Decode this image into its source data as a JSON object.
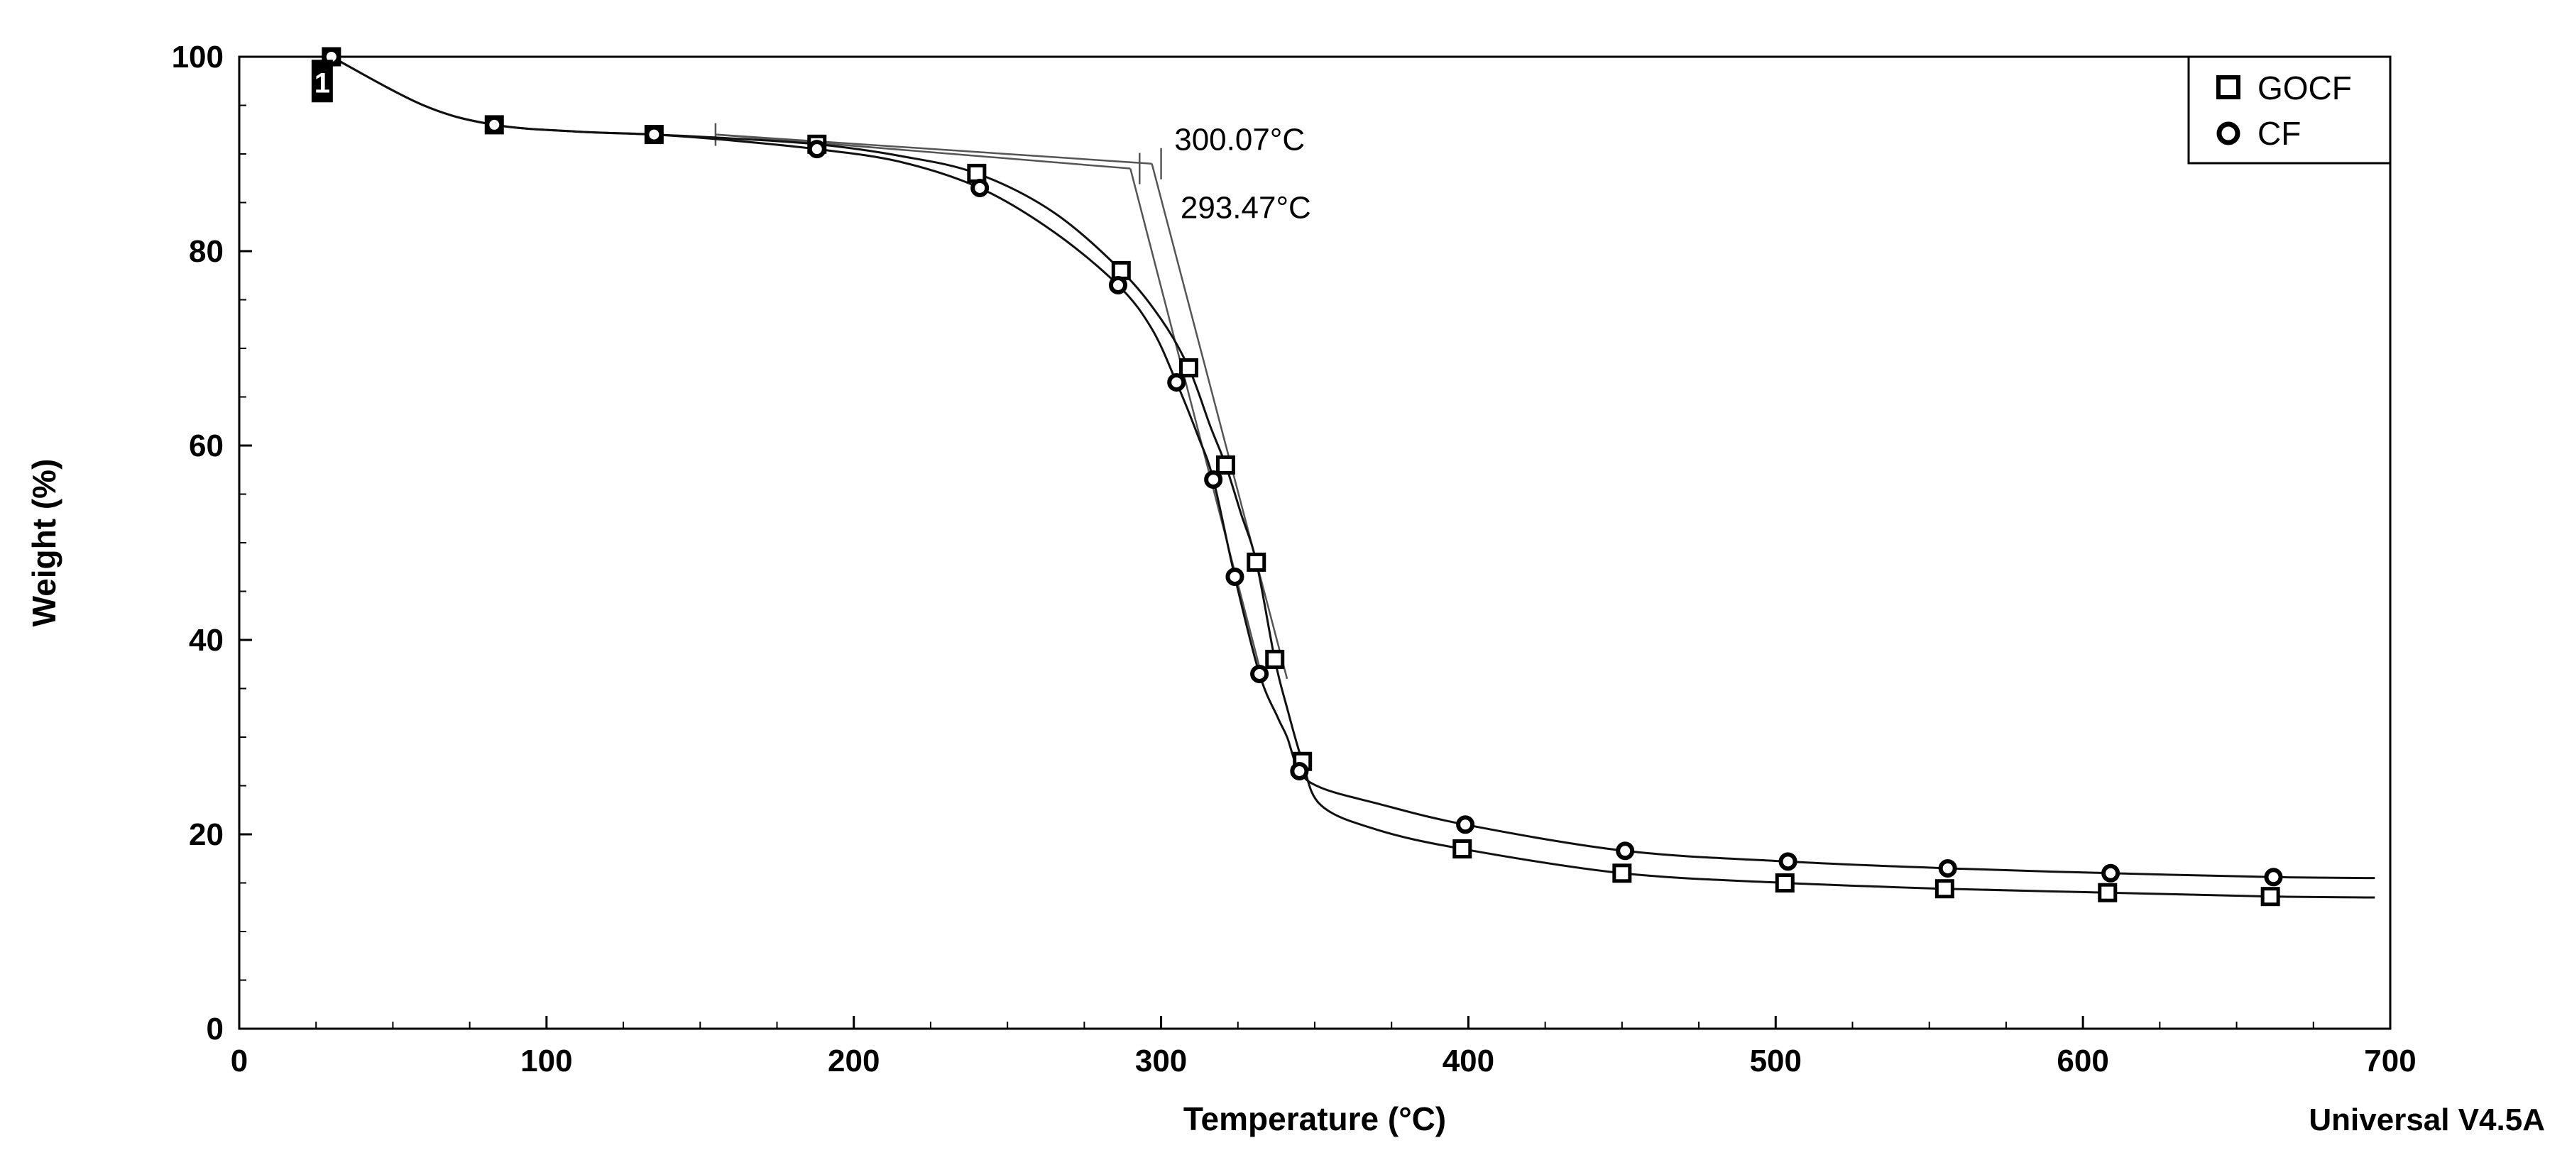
{
  "chart_data": {
    "type": "line",
    "title": "",
    "xlabel": "Temperature (°C)",
    "ylabel": "Weight (%)",
    "xlim": [
      0,
      700
    ],
    "ylim": [
      0,
      100
    ],
    "x_ticks": [
      0,
      100,
      200,
      300,
      400,
      500,
      600,
      700
    ],
    "y_ticks": [
      0,
      20,
      40,
      60,
      80,
      100
    ],
    "grid": false,
    "legend_position": "top-right",
    "series": [
      {
        "name": "GOCF",
        "marker": "square",
        "x": [
          30,
          60,
          83,
          110,
          135,
          160,
          188,
          215,
          240,
          265,
          287,
          300,
          309,
          316,
          321,
          326,
          331,
          337,
          341,
          346,
          352,
          370,
          398,
          450,
          503,
          555,
          608,
          661,
          695
        ],
        "y": [
          100,
          95,
          93,
          92.3,
          92,
          91.6,
          91,
          89.8,
          88,
          84,
          78,
          73,
          68,
          62,
          58,
          53,
          48,
          38,
          33,
          27.5,
          23,
          20.5,
          18.5,
          16,
          15,
          14.4,
          14,
          13.6,
          13.5
        ]
      },
      {
        "name": "CF",
        "marker": "circle",
        "x": [
          30,
          60,
          83,
          110,
          135,
          160,
          188,
          215,
          241,
          265,
          286,
          297,
          305,
          312,
          317,
          324,
          332,
          338,
          341,
          345,
          352,
          370,
          399,
          451,
          504,
          556,
          609,
          662,
          695
        ],
        "y": [
          100,
          95,
          93,
          92.3,
          92,
          91.4,
          90.5,
          89.2,
          86.5,
          82,
          76.5,
          72,
          66.5,
          61,
          56.5,
          46.5,
          36.5,
          32,
          30,
          26.5,
          24.8,
          23.2,
          21,
          18.3,
          17.2,
          16.5,
          16,
          15.6,
          15.5
        ]
      }
    ],
    "annotations": [
      {
        "text": "300.07°C",
        "x": 302,
        "y": 91.5
      },
      {
        "text": "293.47°C",
        "x": 304,
        "y": 84.5
      }
    ],
    "tangent_lines": [
      {
        "x": [
          155,
          297
        ],
        "y": [
          92,
          89
        ]
      },
      {
        "x": [
          297,
          341
        ],
        "y": [
          89,
          36
        ]
      },
      {
        "x": [
          155,
          290
        ],
        "y": [
          92,
          88.5
        ]
      },
      {
        "x": [
          290,
          333
        ],
        "y": [
          88.5,
          36
        ]
      }
    ],
    "onset_markers": [
      {
        "x": 300,
        "y": 89
      },
      {
        "x": 293,
        "y": 88.5
      }
    ],
    "step_label": "1",
    "step_label_at": {
      "x": 27,
      "y": 97.5
    },
    "footer_text": "Universal V4.5A"
  }
}
